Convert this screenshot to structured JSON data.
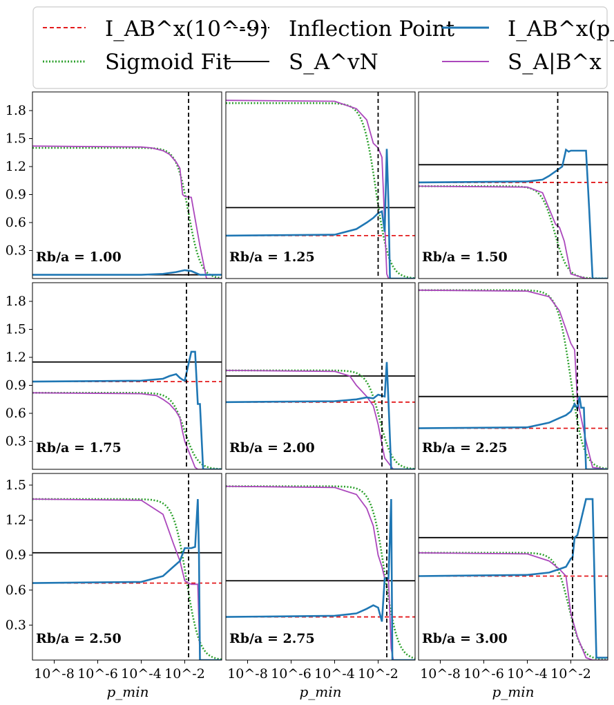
{
  "figure": {
    "legend": [
      {
        "label": "I_AB^x(10^-9)",
        "color": "#e31a1c",
        "style": "dashed",
        "icon": "red-dashed-line"
      },
      {
        "label": "Sigmoid Fit",
        "color": "#2ca02c",
        "style": "dotted",
        "icon": "green-dotted-line"
      },
      {
        "label": "Inflection Point",
        "color": "#000000",
        "style": "dashed",
        "icon": "black-dashed-line"
      },
      {
        "label": "S_A^vN",
        "color": "#000000",
        "style": "solid",
        "icon": "black-solid-line"
      },
      {
        "label": "I_AB^x(p_min)",
        "color": "#1f77b4",
        "style": "solid",
        "icon": "blue-solid-line"
      },
      {
        "label": "S_A|B^x",
        "color": "#ab47bc",
        "style": "solid",
        "icon": "purple-solid-line"
      }
    ],
    "xlabel": "p_min",
    "x_tick_labels": [
      "10^-8",
      "10^-6",
      "10^-4",
      "10^-2"
    ],
    "colors": {
      "red": "#e31a1c",
      "green": "#2ca02c",
      "blue": "#1f77b4",
      "purple": "#ab47bc",
      "black": "#000000"
    }
  },
  "chart_data": [
    {
      "type": "line",
      "ratio_label": "Rb/a = 1.00",
      "ratio": 1.0,
      "x_scale": "log",
      "xlim": [
        1e-09,
        0.5
      ],
      "ylim": [
        0,
        2.0
      ],
      "yticks": [
        0.3,
        0.6,
        0.9,
        1.2,
        1.5,
        1.8
      ],
      "S_AvN": 0.04,
      "I_AB_1e9": 0.04,
      "inflection_x": 0.015,
      "sigmoid": {
        "high": 1.4,
        "low": 0.0,
        "center": 0.015,
        "width": 0.28
      },
      "S_cond": {
        "x": [
          1e-09,
          0.0001,
          0.0003,
          0.001,
          0.002,
          0.004,
          0.006,
          0.008,
          0.01,
          0.02,
          0.05,
          0.1,
          0.5
        ],
        "y": [
          1.42,
          1.41,
          1.4,
          1.37,
          1.33,
          1.25,
          1.18,
          0.9,
          0.88,
          0.87,
          0.35,
          0.0,
          0.0
        ]
      },
      "I_pmin": {
        "x": [
          1e-09,
          0.0001,
          0.001,
          0.004,
          0.01,
          0.02,
          0.05,
          0.1,
          0.5
        ],
        "y": [
          0.04,
          0.04,
          0.05,
          0.07,
          0.09,
          0.08,
          0.04,
          0.04,
          0.04
        ]
      }
    },
    {
      "type": "line",
      "ratio_label": "Rb/a = 1.25",
      "ratio": 1.25,
      "x_scale": "log",
      "xlim": [
        1e-09,
        0.5
      ],
      "ylim": [
        0,
        2.0
      ],
      "yticks": [
        0.3,
        0.6,
        0.9,
        1.2,
        1.5,
        1.8
      ],
      "S_AvN": 0.76,
      "I_AB_1e9": 0.46,
      "inflection_x": 0.01,
      "sigmoid": {
        "high": 1.88,
        "low": 0.0,
        "center": 0.008,
        "width": 0.3
      },
      "S_cond": {
        "x": [
          1e-09,
          0.0001,
          0.001,
          0.003,
          0.006,
          0.01,
          0.015,
          0.02,
          0.025,
          0.03,
          0.5
        ],
        "y": [
          1.91,
          1.9,
          1.82,
          1.7,
          1.45,
          1.4,
          1.3,
          0.6,
          0.05,
          0.0,
          0.0
        ]
      },
      "I_pmin": {
        "x": [
          1e-09,
          0.0001,
          0.001,
          0.003,
          0.006,
          0.01,
          0.015,
          0.02,
          0.025,
          0.03,
          0.035,
          0.04,
          0.5
        ],
        "y": [
          0.46,
          0.47,
          0.53,
          0.6,
          0.65,
          0.7,
          0.72,
          0.5,
          1.39,
          0.8,
          0.0,
          0.0,
          0.0
        ]
      }
    },
    {
      "type": "line",
      "ratio_label": "Rb/a = 1.50",
      "ratio": 1.5,
      "x_scale": "log",
      "xlim": [
        1e-09,
        0.5
      ],
      "ylim": [
        0,
        2.0
      ],
      "yticks": [
        0.3,
        0.6,
        0.9,
        1.2,
        1.5,
        1.8
      ],
      "S_AvN": 1.22,
      "I_AB_1e9": 1.03,
      "inflection_x": 0.0025,
      "sigmoid": {
        "high": 0.99,
        "low": 0.0,
        "center": 0.0018,
        "width": 0.3
      },
      "S_cond": {
        "x": [
          1e-09,
          0.0001,
          0.0005,
          0.001,
          0.002,
          0.003,
          0.005,
          0.01,
          0.05,
          0.5
        ],
        "y": [
          0.99,
          0.98,
          0.92,
          0.75,
          0.58,
          0.55,
          0.4,
          0.05,
          0.0,
          0.0
        ]
      },
      "I_pmin": {
        "x": [
          1e-09,
          0.0001,
          0.0005,
          0.001,
          0.002,
          0.004,
          0.006,
          0.008,
          0.01,
          0.05,
          0.07,
          0.1,
          0.5
        ],
        "y": [
          1.03,
          1.04,
          1.06,
          1.1,
          1.15,
          1.2,
          1.38,
          1.36,
          1.37,
          1.37,
          0.74,
          0.0,
          0.0
        ]
      }
    },
    {
      "type": "line",
      "ratio_label": "Rb/a = 1.75",
      "ratio": 1.75,
      "x_scale": "log",
      "xlim": [
        1e-09,
        0.5
      ],
      "ylim": [
        0,
        2.0
      ],
      "yticks": [
        0.3,
        0.6,
        0.9,
        1.2,
        1.5,
        1.8
      ],
      "S_AvN": 1.15,
      "I_AB_1e9": 0.94,
      "inflection_x": 0.012,
      "sigmoid": {
        "high": 0.82,
        "low": 0.0,
        "center": 0.01,
        "width": 0.3
      },
      "S_cond": {
        "x": [
          1e-09,
          0.0001,
          0.0005,
          0.001,
          0.002,
          0.004,
          0.006,
          0.008,
          0.01,
          0.03,
          0.04,
          0.5
        ],
        "y": [
          0.82,
          0.81,
          0.79,
          0.75,
          0.7,
          0.62,
          0.55,
          0.4,
          0.3,
          0.02,
          0.0,
          0.0
        ]
      },
      "I_pmin": {
        "x": [
          1e-09,
          0.0001,
          0.001,
          0.002,
          0.004,
          0.006,
          0.008,
          0.01,
          0.02,
          0.03,
          0.04,
          0.05,
          0.07,
          0.1,
          0.5
        ],
        "y": [
          0.94,
          0.95,
          0.97,
          1.0,
          1.02,
          0.98,
          0.96,
          0.95,
          1.26,
          1.26,
          0.7,
          0.7,
          0.0,
          0.0,
          0.0
        ]
      }
    },
    {
      "type": "line",
      "ratio_label": "Rb/a = 2.00",
      "ratio": 2.0,
      "x_scale": "log",
      "xlim": [
        1e-09,
        0.5
      ],
      "ylim": [
        0,
        2.0
      ],
      "yticks": [
        0.3,
        0.6,
        0.9,
        1.2,
        1.5,
        1.8
      ],
      "S_AvN": 1.0,
      "I_AB_1e9": 0.72,
      "inflection_x": 0.015,
      "sigmoid": {
        "high": 1.06,
        "low": 0.0,
        "center": 0.012,
        "width": 0.3
      },
      "S_cond": {
        "x": [
          1e-09,
          0.0001,
          0.0005,
          0.001,
          0.003,
          0.006,
          0.01,
          0.02,
          0.05,
          0.5
        ],
        "y": [
          1.06,
          1.05,
          1.0,
          0.9,
          0.78,
          0.68,
          0.48,
          0.12,
          0.0,
          0.0
        ]
      },
      "I_pmin": {
        "x": [
          1e-09,
          0.0001,
          0.001,
          0.003,
          0.006,
          0.01,
          0.02,
          0.025,
          0.03,
          0.04,
          0.05,
          0.5
        ],
        "y": [
          0.72,
          0.73,
          0.75,
          0.77,
          0.76,
          0.8,
          0.78,
          1.15,
          0.72,
          0.0,
          0.0,
          0.0
        ]
      }
    },
    {
      "type": "line",
      "ratio_label": "Rb/a = 2.25",
      "ratio": 2.25,
      "x_scale": "log",
      "xlim": [
        1e-09,
        0.5
      ],
      "ylim": [
        0,
        2.0
      ],
      "yticks": [
        0.3,
        0.6,
        0.9,
        1.2,
        1.5,
        1.8
      ],
      "S_AvN": 0.78,
      "I_AB_1e9": 0.44,
      "inflection_x": 0.02,
      "sigmoid": {
        "high": 1.92,
        "low": 0.0,
        "center": 0.01,
        "width": 0.3
      },
      "S_cond": {
        "x": [
          1e-09,
          0.0001,
          0.001,
          0.003,
          0.006,
          0.01,
          0.015,
          0.02,
          0.03,
          0.05,
          0.1,
          0.5
        ],
        "y": [
          1.92,
          1.91,
          1.85,
          1.7,
          1.5,
          1.35,
          1.28,
          0.75,
          0.55,
          0.3,
          0.02,
          0.0
        ]
      },
      "I_pmin": {
        "x": [
          1e-09,
          0.0001,
          0.001,
          0.003,
          0.006,
          0.01,
          0.015,
          0.02,
          0.025,
          0.03,
          0.04,
          0.05,
          0.07,
          0.1,
          0.5
        ],
        "y": [
          0.44,
          0.45,
          0.5,
          0.55,
          0.58,
          0.62,
          0.7,
          0.65,
          0.78,
          0.66,
          0.66,
          0.0,
          0.0,
          0.0,
          0.0
        ]
      }
    },
    {
      "type": "line",
      "ratio_label": "Rb/a = 2.50",
      "ratio": 2.5,
      "x_scale": "log",
      "xlim": [
        1e-09,
        0.5
      ],
      "ylim": [
        0,
        1.6
      ],
      "yticks": [
        0.3,
        0.6,
        0.9,
        1.2,
        1.5
      ],
      "S_AvN": 0.92,
      "I_AB_1e9": 0.66,
      "inflection_x": 0.015,
      "sigmoid": {
        "high": 1.38,
        "low": 0.0,
        "center": 0.012,
        "width": 0.3
      },
      "S_cond": {
        "x": [
          1e-09,
          0.0001,
          0.001,
          0.003,
          0.006,
          0.01,
          0.015,
          0.02,
          0.04,
          0.05,
          0.06,
          0.5
        ],
        "y": [
          1.38,
          1.37,
          1.25,
          1.0,
          0.85,
          0.68,
          0.66,
          0.65,
          0.65,
          0.0,
          0.0,
          0.0
        ]
      },
      "I_pmin": {
        "x": [
          1e-09,
          0.0001,
          0.001,
          0.003,
          0.006,
          0.01,
          0.02,
          0.03,
          0.04,
          0.045,
          0.05,
          0.06,
          0.5
        ],
        "y": [
          0.66,
          0.67,
          0.72,
          0.8,
          0.85,
          0.96,
          0.96,
          0.97,
          1.38,
          0.9,
          0.0,
          0.0,
          0.0
        ]
      }
    },
    {
      "type": "line",
      "ratio_label": "Rb/a = 2.75",
      "ratio": 2.75,
      "x_scale": "log",
      "xlim": [
        1e-09,
        0.5
      ],
      "ylim": [
        0,
        1.6
      ],
      "yticks": [
        0.3,
        0.6,
        0.9,
        1.2,
        1.5
      ],
      "S_AvN": 0.68,
      "I_AB_1e9": 0.37,
      "inflection_x": 0.025,
      "sigmoid": {
        "high": 1.49,
        "low": 0.0,
        "center": 0.02,
        "width": 0.3
      },
      "S_cond": {
        "x": [
          1e-09,
          0.0001,
          0.001,
          0.003,
          0.006,
          0.01,
          0.015,
          0.02,
          0.03,
          0.04,
          0.05,
          0.06,
          0.5
        ],
        "y": [
          1.49,
          1.48,
          1.42,
          1.3,
          1.15,
          0.9,
          0.8,
          0.7,
          0.69,
          0.1,
          0.0,
          0.0,
          0.0
        ]
      },
      "I_pmin": {
        "x": [
          1e-09,
          0.0001,
          0.001,
          0.003,
          0.006,
          0.01,
          0.015,
          0.02,
          0.03,
          0.04,
          0.045,
          0.05,
          0.06,
          0.5
        ],
        "y": [
          0.37,
          0.38,
          0.4,
          0.44,
          0.47,
          0.45,
          0.33,
          0.7,
          0.7,
          1.38,
          0.0,
          0.0,
          0.0,
          0.0
        ]
      }
    },
    {
      "type": "line",
      "ratio_label": "Rb/a = 3.00",
      "ratio": 3.0,
      "x_scale": "log",
      "xlim": [
        1e-09,
        0.5
      ],
      "ylim": [
        0,
        1.6
      ],
      "yticks": [
        0.3,
        0.6,
        0.9,
        1.2,
        1.5
      ],
      "S_AvN": 1.05,
      "I_AB_1e9": 0.72,
      "inflection_x": 0.012,
      "sigmoid": {
        "high": 0.92,
        "low": 0.0,
        "center": 0.008,
        "width": 0.3
      },
      "S_cond": {
        "x": [
          1e-09,
          0.0001,
          0.001,
          0.003,
          0.006,
          0.01,
          0.02,
          0.05,
          0.1,
          0.15,
          0.5
        ],
        "y": [
          0.92,
          0.91,
          0.85,
          0.78,
          0.72,
          0.4,
          0.2,
          0.02,
          0.0,
          0.0,
          0.0
        ]
      },
      "I_pmin": {
        "x": [
          1e-09,
          0.0001,
          0.001,
          0.003,
          0.006,
          0.01,
          0.012,
          0.015,
          0.02,
          0.05,
          0.07,
          0.1,
          0.15,
          0.2,
          0.5
        ],
        "y": [
          0.72,
          0.73,
          0.75,
          0.78,
          0.8,
          0.87,
          0.88,
          1.05,
          1.07,
          1.38,
          1.38,
          1.38,
          0.02,
          0.02,
          0.02
        ]
      }
    }
  ]
}
